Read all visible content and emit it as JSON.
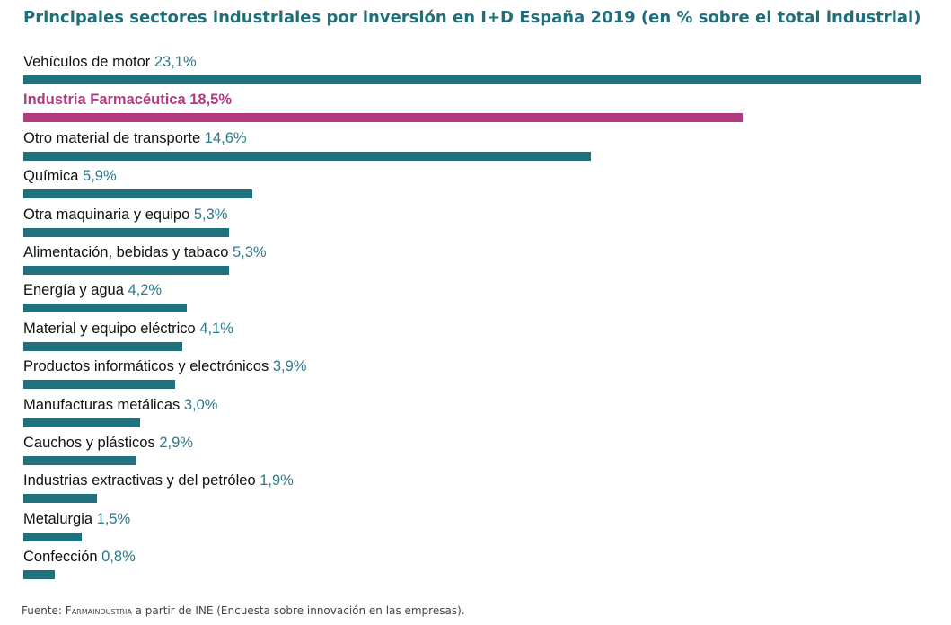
{
  "chart_data": {
    "type": "bar",
    "orientation": "horizontal",
    "title": "Principales sectores industriales por inversión en I+D España 2019 (en % sobre el total industrial)",
    "categories": [
      "Vehículos de motor",
      "Industria Farmacéutica",
      "Otro material de transporte",
      "Química",
      "Otra maquinaria y equipo",
      "Alimentación, bebidas y tabaco",
      "Energía y agua",
      "Material y equipo eléctrico",
      "Productos informáticos y electrónicos",
      "Manufacturas metálicas",
      "Cauchos y plásticos",
      "Industrias extractivas y del petróleo",
      "Metalurgia",
      "Confección"
    ],
    "values": [
      23.1,
      18.5,
      14.6,
      5.9,
      5.3,
      5.3,
      4.2,
      4.1,
      3.9,
      3.0,
      2.9,
      1.9,
      1.5,
      0.8
    ],
    "value_labels": [
      "23,1%",
      "18,5%",
      "14,6%",
      "5,9%",
      "5,3%",
      "5,3%",
      "4,2%",
      "4,1%",
      "3,9%",
      "3,0%",
      "2,9%",
      "1,9%",
      "1,5%",
      "0,8%"
    ],
    "highlight_category": "Industria Farmacéutica",
    "colors": {
      "bar": "#1f727d",
      "highlight": "#b33a80",
      "value_text": "#2b7a88"
    },
    "xlim": [
      0,
      23.1
    ],
    "grid": false,
    "legend": "none"
  },
  "source": {
    "prefix": "Fuente: ",
    "org": "Farmaindustria",
    "suffix": " a partir de INE (Encuesta sobre innovación en las empresas)."
  }
}
